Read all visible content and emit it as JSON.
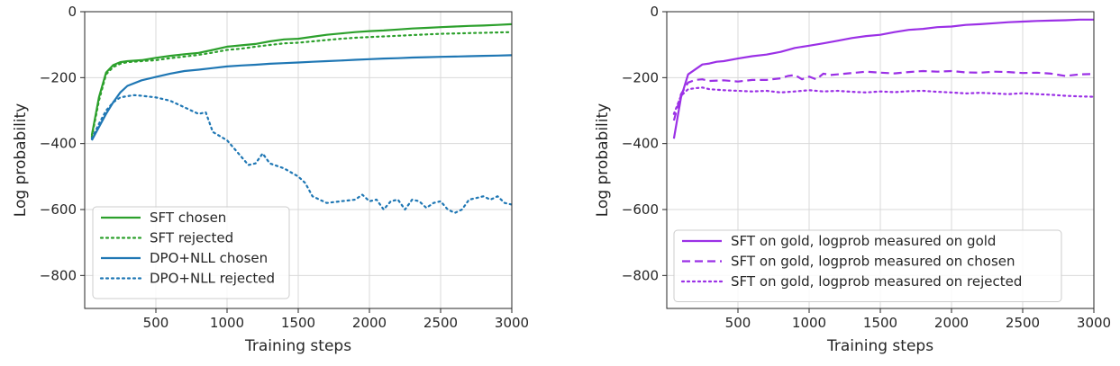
{
  "chart_data": [
    {
      "type": "line",
      "xlabel": "Training steps",
      "ylabel": "Log probability",
      "xlim": [
        0,
        3000
      ],
      "ylim": [
        -900,
        0
      ],
      "xticks": [
        500,
        1000,
        1500,
        2000,
        2500,
        3000
      ],
      "yticks": [
        0,
        -200,
        -400,
        -600,
        -800
      ],
      "xtick_labels": [
        "500",
        "1000",
        "1500",
        "2000",
        "2500",
        "3000"
      ],
      "ytick_labels": [
        "0",
        "−200",
        "−400",
        "−600",
        "−800"
      ],
      "grid": true,
      "legend_position": "lower-left",
      "series": [
        {
          "name": "SFT chosen",
          "color": "#2ca02c",
          "style": "solid",
          "x": [
            50,
            100,
            150,
            200,
            250,
            300,
            400,
            500,
            600,
            700,
            800,
            900,
            1000,
            1100,
            1200,
            1300,
            1400,
            1500,
            1600,
            1700,
            1800,
            1900,
            2000,
            2100,
            2200,
            2300,
            2400,
            2500,
            2600,
            2700,
            2800,
            2900,
            3000
          ],
          "y": [
            -375,
            -260,
            -185,
            -162,
            -153,
            -150,
            -147,
            -140,
            -134,
            -129,
            -125,
            -116,
            -106,
            -102,
            -98,
            -90,
            -84,
            -82,
            -76,
            -70,
            -66,
            -62,
            -59,
            -57,
            -54,
            -51,
            -49,
            -47,
            -45,
            -43,
            -42,
            -40,
            -38
          ]
        },
        {
          "name": "SFT rejected",
          "color": "#2ca02c",
          "style": "dotted",
          "x": [
            50,
            100,
            150,
            200,
            250,
            300,
            400,
            500,
            600,
            700,
            800,
            900,
            1000,
            1100,
            1200,
            1300,
            1400,
            1500,
            1600,
            1700,
            1800,
            1900,
            2000,
            2100,
            2200,
            2300,
            2400,
            2500,
            2600,
            2700,
            2800,
            2900,
            3000
          ],
          "y": [
            -380,
            -270,
            -190,
            -168,
            -158,
            -153,
            -150,
            -147,
            -141,
            -136,
            -131,
            -124,
            -116,
            -112,
            -106,
            -101,
            -96,
            -94,
            -90,
            -86,
            -82,
            -79,
            -77,
            -75,
            -73,
            -71,
            -69,
            -67,
            -66,
            -65,
            -64,
            -63,
            -62
          ]
        },
        {
          "name": "DPO+NLL chosen",
          "color": "#1f77b4",
          "style": "solid",
          "x": [
            50,
            100,
            150,
            200,
            250,
            300,
            400,
            500,
            600,
            700,
            800,
            900,
            1000,
            1100,
            1200,
            1300,
            1400,
            1500,
            1600,
            1700,
            1800,
            1900,
            2000,
            2100,
            2200,
            2300,
            2400,
            2500,
            2600,
            2700,
            2800,
            2900,
            3000
          ],
          "y": [
            -390,
            -350,
            -310,
            -275,
            -245,
            -225,
            -208,
            -198,
            -188,
            -180,
            -176,
            -171,
            -166,
            -163,
            -161,
            -158,
            -156,
            -154,
            -152,
            -150,
            -148,
            -146,
            -144,
            -142,
            -141,
            -139,
            -138,
            -137,
            -136,
            -135,
            -134,
            -133,
            -132
          ]
        },
        {
          "name": "DPO+NLL rejected",
          "color": "#1f77b4",
          "style": "dotted",
          "x": [
            50,
            100,
            150,
            200,
            250,
            300,
            350,
            400,
            500,
            600,
            700,
            800,
            850,
            900,
            1000,
            1100,
            1150,
            1200,
            1250,
            1300,
            1400,
            1500,
            1550,
            1600,
            1700,
            1800,
            1900,
            1950,
            2000,
            2050,
            2100,
            2150,
            2200,
            2250,
            2300,
            2350,
            2400,
            2450,
            2500,
            2550,
            2600,
            2650,
            2700,
            2750,
            2800,
            2850,
            2900,
            2950,
            3000
          ],
          "y": [
            -385,
            -340,
            -300,
            -275,
            -260,
            -256,
            -253,
            -255,
            -260,
            -270,
            -290,
            -310,
            -305,
            -365,
            -390,
            -440,
            -465,
            -460,
            -430,
            -460,
            -475,
            -500,
            -520,
            -560,
            -580,
            -575,
            -570,
            -555,
            -575,
            -570,
            -600,
            -575,
            -570,
            -600,
            -570,
            -575,
            -595,
            -580,
            -575,
            -600,
            -610,
            -600,
            -570,
            -565,
            -560,
            -570,
            -560,
            -580,
            -585
          ]
        }
      ]
    },
    {
      "type": "line",
      "xlabel": "Training steps",
      "ylabel": "Log probability",
      "xlim": [
        0,
        3000
      ],
      "ylim": [
        -900,
        0
      ],
      "xticks": [
        500,
        1000,
        1500,
        2000,
        2500,
        3000
      ],
      "yticks": [
        0,
        -200,
        -400,
        -600,
        -800
      ],
      "xtick_labels": [
        "500",
        "1000",
        "1500",
        "2000",
        "2500",
        "3000"
      ],
      "ytick_labels": [
        "0",
        "−200",
        "−400",
        "−600",
        "−800"
      ],
      "grid": true,
      "legend_position": "lower-left",
      "series": [
        {
          "name": "SFT on gold, logprob measured on gold",
          "color": "#9b30e6",
          "style": "solid",
          "x": [
            50,
            100,
            150,
            200,
            250,
            300,
            350,
            400,
            500,
            600,
            700,
            800,
            900,
            1000,
            1100,
            1200,
            1300,
            1400,
            1500,
            1600,
            1700,
            1800,
            1900,
            2000,
            2100,
            2200,
            2300,
            2400,
            2500,
            2600,
            2700,
            2800,
            2900,
            3000
          ],
          "y": [
            -385,
            -260,
            -190,
            -175,
            -160,
            -157,
            -152,
            -150,
            -142,
            -135,
            -130,
            -122,
            -110,
            -103,
            -96,
            -88,
            -80,
            -74,
            -70,
            -62,
            -55,
            -52,
            -47,
            -45,
            -40,
            -38,
            -35,
            -32,
            -30,
            -28,
            -27,
            -26,
            -24,
            -24
          ]
        },
        {
          "name": "SFT on gold, logprob measured on chosen",
          "color": "#9b30e6",
          "style": "dashed",
          "x": [
            50,
            100,
            150,
            200,
            250,
            300,
            400,
            500,
            600,
            700,
            800,
            850,
            900,
            950,
            1000,
            1050,
            1100,
            1150,
            1200,
            1300,
            1400,
            1500,
            1600,
            1700,
            1800,
            1900,
            2000,
            2100,
            2200,
            2300,
            2400,
            2500,
            2600,
            2700,
            2800,
            2900,
            3000
          ],
          "y": [
            -330,
            -250,
            -215,
            -207,
            -205,
            -210,
            -208,
            -212,
            -207,
            -207,
            -202,
            -195,
            -192,
            -205,
            -197,
            -205,
            -188,
            -192,
            -190,
            -186,
            -182,
            -185,
            -187,
            -183,
            -180,
            -182,
            -180,
            -184,
            -185,
            -182,
            -183,
            -186,
            -185,
            -188,
            -195,
            -190,
            -189
          ]
        },
        {
          "name": "SFT on gold, logprob measured on rejected",
          "color": "#9b30e6",
          "style": "dotted",
          "x": [
            50,
            100,
            150,
            200,
            250,
            300,
            400,
            500,
            600,
            700,
            800,
            900,
            1000,
            1100,
            1200,
            1300,
            1400,
            1500,
            1600,
            1700,
            1800,
            1900,
            2000,
            2100,
            2200,
            2300,
            2400,
            2500,
            2600,
            2700,
            2800,
            2900,
            3000
          ],
          "y": [
            -310,
            -255,
            -235,
            -232,
            -230,
            -235,
            -238,
            -240,
            -242,
            -240,
            -245,
            -242,
            -238,
            -242,
            -240,
            -243,
            -245,
            -242,
            -244,
            -241,
            -240,
            -243,
            -245,
            -248,
            -246,
            -248,
            -250,
            -247,
            -250,
            -252,
            -255,
            -257,
            -258
          ]
        }
      ]
    }
  ]
}
